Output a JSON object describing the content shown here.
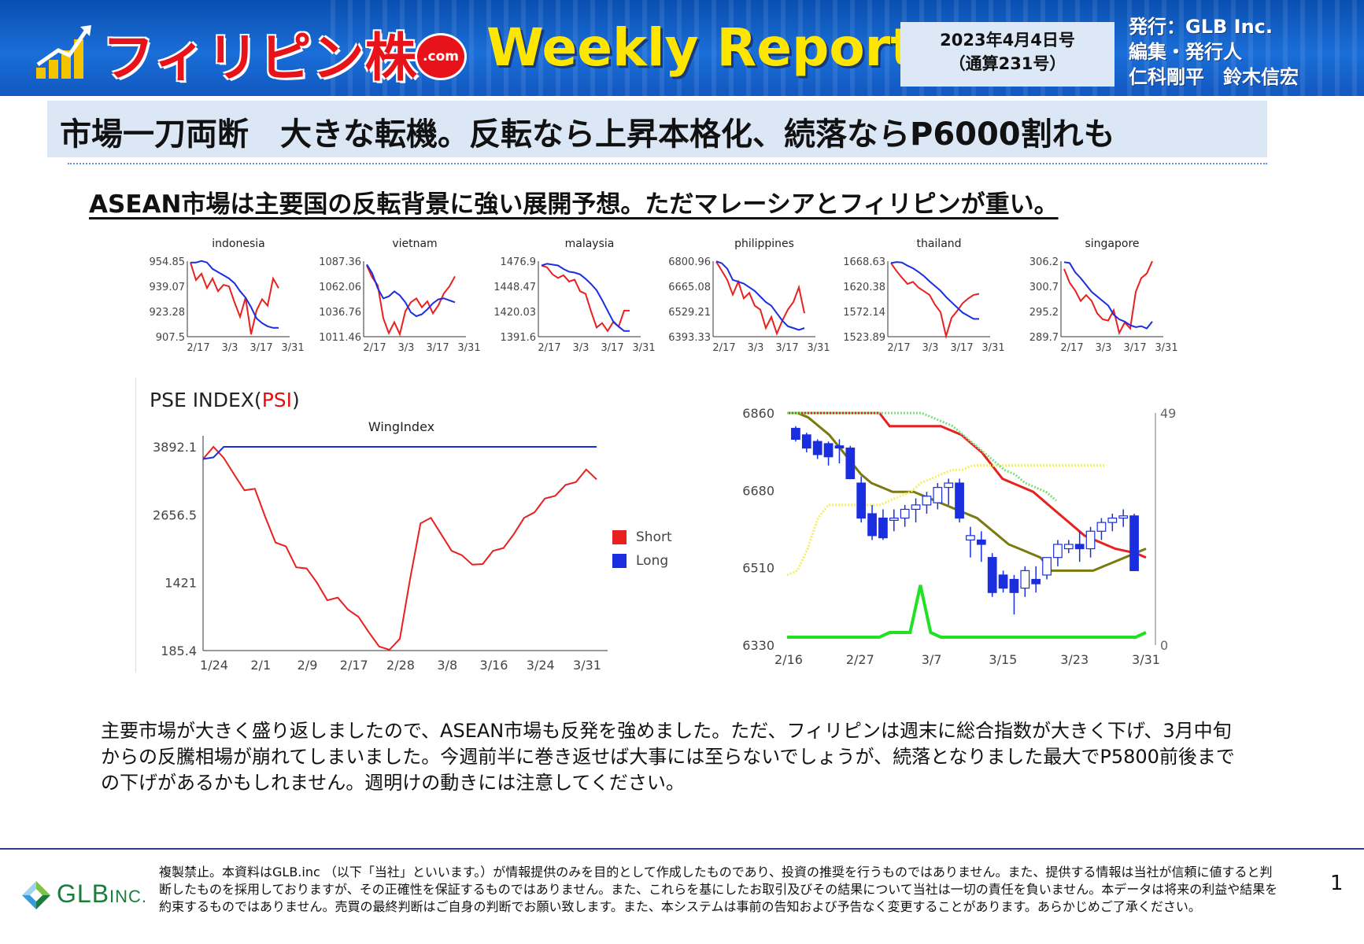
{
  "header": {
    "brand": "フィリピン株",
    "brand_suffix": ".com",
    "report_title": "Weekly Report",
    "issue_date": "2023年4月4日号",
    "issue_number": "（通算231号）",
    "publisher_line1": "発行：GLB Inc.",
    "publisher_line2": "編集・発行人",
    "publisher_line3": "仁科剛平　鈴木信宏"
  },
  "main_title": "市場一刀両断　大きな転機。反転なら上昇本格化、続落ならP6000割れも",
  "subtitle": "ASEAN市場は主要国の反転背景に強い展開予想。ただマレーシアとフィリピンが重い。",
  "body_text": "主要市場が大きく盛り返しましたので、ASEAN市場も反発を強めました。ただ、フィリピンは週末に総合指数が大きく下げ、3月中旬からの反騰相場が崩れてしまいました。今週前半に巻き返せば大事には至らないでしょうが、続落となりました最大でP5800前後までの下げがあるかもしれません。週明けの動きには注意してください。",
  "footer": {
    "company_logo_text": "GLB",
    "company_logo_suffix": "INC.",
    "disclaimer": "複製禁止。本資料はGLB.inc （以下「当社」といいます。）が情報提供のみを目的として作成したものであり、投資の推奨を行うものではありません。また、提供する情報は当社が信頼に値すると判断したものを採用しておりますが、その正確性を保証するものではありません。また、これらを基にしたお取引及びその結果について当社は一切の責任を負いません。本データは将来の利益や結果を約束するものではありません。売買の最終判断はご自身の判断でお願い致します。また、本システムは事前の告知および予告なく変更することがあります。あらかじめご了承ください。",
    "page_number": "1"
  },
  "colors": {
    "header_blue": "#1a6ed8",
    "brand_red": "#e8121a",
    "weekly_yellow": "#ffe600",
    "short": "#e82020",
    "long": "#1a2ee0"
  },
  "chart_data": [
    {
      "type": "line",
      "title": "indonesia",
      "yticks": [
        "954.85",
        "939.07",
        "923.28",
        "907.5"
      ],
      "ylim": [
        907.5,
        954.85
      ],
      "xticks": [
        "2/17",
        "3/3",
        "3/17",
        "3/31"
      ],
      "series": [
        {
          "color": "red",
          "values": [
            954,
            943,
            947,
            938,
            944,
            936,
            940,
            939,
            929,
            920,
            932,
            909,
            924,
            931,
            927,
            944,
            938
          ]
        },
        {
          "color": "blue",
          "values": [
            954,
            954,
            955,
            954,
            950,
            948,
            946,
            944,
            941,
            936,
            932,
            926,
            919,
            916,
            914,
            913,
            913
          ]
        }
      ]
    },
    {
      "type": "line",
      "title": "vietnam",
      "yticks": [
        "1087.36",
        "1062.06",
        "1036.76",
        "1011.46"
      ],
      "ylim": [
        1011.46,
        1087.36
      ],
      "xticks": [
        "2/17",
        "3/3",
        "3/17",
        "3/31"
      ],
      "series": [
        {
          "color": "red",
          "values": [
            1083,
            1071,
            1063,
            1030,
            1015,
            1026,
            1014,
            1037,
            1046,
            1050,
            1041,
            1047,
            1035,
            1043,
            1055,
            1062,
            1072
          ]
        },
        {
          "color": "blue",
          "values": [
            1084,
            1075,
            1060,
            1050,
            1052,
            1057,
            1053,
            1046,
            1036,
            1032,
            1034,
            1039,
            1045,
            1049,
            1050,
            1048,
            1046
          ]
        }
      ]
    },
    {
      "type": "line",
      "title": "malaysia",
      "yticks": [
        "1476.9",
        "1448.47",
        "1420.03",
        "1391.6"
      ],
      "ylim": [
        1391.6,
        1476.9
      ],
      "xticks": [
        "2/17",
        "3/3",
        "3/17",
        "3/31"
      ],
      "series": [
        {
          "color": "red",
          "values": [
            1472,
            1470,
            1462,
            1458,
            1461,
            1454,
            1456,
            1443,
            1440,
            1420,
            1402,
            1407,
            1398,
            1408,
            1403,
            1421,
            1421
          ]
        },
        {
          "color": "blue",
          "values": [
            1472,
            1474,
            1473,
            1472,
            1468,
            1465,
            1464,
            1462,
            1457,
            1451,
            1444,
            1433,
            1421,
            1409,
            1403,
            1398,
            1398
          ]
        }
      ]
    },
    {
      "type": "line",
      "title": "philippines",
      "yticks": [
        "6800.96",
        "6665.08",
        "6529.21",
        "6393.33"
      ],
      "ylim": [
        6393.33,
        6800.96
      ],
      "xticks": [
        "2/17",
        "3/3",
        "3/17",
        "3/31"
      ],
      "series": [
        {
          "color": "red",
          "values": [
            6798,
            6750,
            6700,
            6620,
            6690,
            6600,
            6630,
            6560,
            6540,
            6440,
            6500,
            6410,
            6480,
            6540,
            6580,
            6660,
            6520
          ]
        },
        {
          "color": "blue",
          "values": [
            6800,
            6790,
            6760,
            6700,
            6690,
            6680,
            6660,
            6640,
            6610,
            6580,
            6560,
            6520,
            6480,
            6450,
            6440,
            6430,
            6440
          ]
        }
      ]
    },
    {
      "type": "line",
      "title": "thailand",
      "yticks": [
        "1668.63",
        "1620.38",
        "1572.14",
        "1523.89"
      ],
      "ylim": [
        1523.89,
        1668.63
      ],
      "xticks": [
        "2/17",
        "3/3",
        "3/17",
        "3/31"
      ],
      "series": [
        {
          "color": "red",
          "values": [
            1665,
            1650,
            1637,
            1625,
            1629,
            1618,
            1611,
            1604,
            1585,
            1571,
            1525,
            1560,
            1573,
            1588,
            1597,
            1604,
            1606
          ]
        },
        {
          "color": "blue",
          "values": [
            1665,
            1667,
            1666,
            1660,
            1655,
            1648,
            1640,
            1630,
            1621,
            1612,
            1600,
            1590,
            1580,
            1570,
            1564,
            1558,
            1558
          ]
        }
      ]
    },
    {
      "type": "line",
      "title": "singapore",
      "yticks": [
        "306.2",
        "300.7",
        "295.2",
        "289.7"
      ],
      "ylim": [
        289.7,
        306.2
      ],
      "xticks": [
        "2/17",
        "3/3",
        "3/17",
        "3/31"
      ],
      "series": [
        {
          "color": "red",
          "values": [
            304.5,
            301.5,
            299.8,
            297.5,
            298.8,
            297.5,
            294.8,
            293.5,
            293.2,
            295.5,
            290.5,
            292.8,
            291.5,
            299.5,
            302.5,
            303.5,
            306.2
          ]
        },
        {
          "color": "blue",
          "values": [
            306.0,
            305.8,
            303.8,
            302.5,
            301.0,
            299.5,
            298.5,
            297.5,
            296.5,
            294.5,
            293.5,
            293.0,
            292.2,
            291.8,
            292.0,
            291.5,
            293.0
          ]
        }
      ]
    },
    {
      "type": "line",
      "title": "WingIndex",
      "heading": "PSE INDEX(",
      "heading_accent": "PSI",
      "heading_close": ")",
      "yticks": [
        "3892.1",
        "2656.5",
        "1421",
        "185.4"
      ],
      "ylim": [
        185.4,
        3892.1
      ],
      "xticks": [
        "1/24",
        "2/1",
        "2/9",
        "2/17",
        "2/28",
        "3/8",
        "3/16",
        "3/24",
        "3/31"
      ],
      "legend": [
        "Short",
        "Long"
      ],
      "series": [
        {
          "name": "Short",
          "color": "red",
          "values": [
            3670,
            3892,
            3690,
            3390,
            3100,
            3130,
            2620,
            2150,
            2080,
            1700,
            1680,
            1420,
            1100,
            1150,
            930,
            800,
            520,
            260,
            200,
            400,
            1500,
            2500,
            2600,
            2300,
            2000,
            1920,
            1750,
            1760,
            2000,
            2050,
            2300,
            2600,
            2700,
            2950,
            3000,
            3200,
            3250,
            3480,
            3300
          ]
        },
        {
          "name": "Long",
          "color": "blue",
          "values": [
            3670,
            3700,
            3892,
            3892,
            3892,
            3892,
            3892,
            3892,
            3892,
            3892,
            3892,
            3892,
            3892,
            3892,
            3892,
            3892,
            3892,
            3892,
            3892,
            3892,
            3892,
            3892,
            3892,
            3892,
            3892,
            3892,
            3892,
            3892,
            3892,
            3892,
            3892,
            3892,
            3892,
            3892,
            3892,
            3892,
            3892,
            3892,
            3892
          ]
        }
      ]
    },
    {
      "type": "candlestick",
      "yticks": [
        "6860",
        "6680",
        "6510",
        "6330"
      ],
      "ylim": [
        6330,
        6860
      ],
      "y2ticks": [
        "49",
        "0"
      ],
      "y2lim": [
        0,
        49
      ],
      "xticks": [
        "2/16",
        "2/27",
        "3/7",
        "3/15",
        "3/23",
        "3/31"
      ],
      "candles": [
        {
          "o": 6825,
          "h": 6830,
          "l": 6795,
          "c": 6800
        },
        {
          "o": 6810,
          "h": 6815,
          "l": 6770,
          "c": 6780
        },
        {
          "o": 6795,
          "h": 6800,
          "l": 6755,
          "c": 6765
        },
        {
          "o": 6790,
          "h": 6795,
          "l": 6740,
          "c": 6760
        },
        {
          "o": 6785,
          "h": 6800,
          "l": 6745,
          "c": 6780
        },
        {
          "o": 6780,
          "h": 6785,
          "l": 6710,
          "c": 6710
        },
        {
          "o": 6700,
          "h": 6715,
          "l": 6610,
          "c": 6620
        },
        {
          "o": 6630,
          "h": 6650,
          "l": 6570,
          "c": 6580
        },
        {
          "o": 6620,
          "h": 6640,
          "l": 6570,
          "c": 6575
        },
        {
          "o": 6615,
          "h": 6640,
          "l": 6590,
          "c": 6620
        },
        {
          "o": 6620,
          "h": 6650,
          "l": 6600,
          "c": 6640
        },
        {
          "o": 6640,
          "h": 6665,
          "l": 6610,
          "c": 6650
        },
        {
          "o": 6650,
          "h": 6680,
          "l": 6630,
          "c": 6670
        },
        {
          "o": 6655,
          "h": 6700,
          "l": 6640,
          "c": 6690
        },
        {
          "o": 6690,
          "h": 6710,
          "l": 6650,
          "c": 6700
        },
        {
          "o": 6700,
          "h": 6710,
          "l": 6610,
          "c": 6620
        },
        {
          "o": 6570,
          "h": 6600,
          "l": 6530,
          "c": 6580
        },
        {
          "o": 6570,
          "h": 6590,
          "l": 6520,
          "c": 6560
        },
        {
          "o": 6530,
          "h": 6540,
          "l": 6440,
          "c": 6450
        },
        {
          "o": 6490,
          "h": 6500,
          "l": 6450,
          "c": 6460
        },
        {
          "o": 6480,
          "h": 6490,
          "l": 6400,
          "c": 6450
        },
        {
          "o": 6460,
          "h": 6510,
          "l": 6440,
          "c": 6500
        },
        {
          "o": 6480,
          "h": 6510,
          "l": 6450,
          "c": 6470
        },
        {
          "o": 6490,
          "h": 6530,
          "l": 6480,
          "c": 6530
        },
        {
          "o": 6530,
          "h": 6570,
          "l": 6510,
          "c": 6560
        },
        {
          "o": 6550,
          "h": 6570,
          "l": 6540,
          "c": 6560
        },
        {
          "o": 6560,
          "h": 6590,
          "l": 6520,
          "c": 6550
        },
        {
          "o": 6550,
          "h": 6600,
          "l": 6530,
          "c": 6590
        },
        {
          "o": 6590,
          "h": 6620,
          "l": 6570,
          "c": 6610
        },
        {
          "o": 6610,
          "h": 6630,
          "l": 6590,
          "c": 6620
        },
        {
          "o": 6620,
          "h": 6640,
          "l": 6600,
          "c": 6625
        },
        {
          "o": 6625,
          "h": 6630,
          "l": 6500,
          "c": 6500
        }
      ],
      "lines": [
        {
          "color": "red",
          "values": [
            6860,
            6860,
            6860,
            6860,
            6860,
            6860,
            6860,
            6860,
            6860,
            6860,
            6830,
            6830,
            6830,
            6830,
            6830,
            6830,
            6820,
            6810,
            6790,
            6770,
            6740,
            6710,
            6700,
            6690,
            6680,
            6660,
            6640,
            6620,
            6600,
            6580,
            6570,
            6560,
            6550,
            6545,
            6540,
            6530
          ]
        },
        {
          "color": "olive",
          "values": [
            6860,
            6860,
            6850,
            6830,
            6810,
            6780,
            6750,
            6720,
            6700,
            6690,
            6680,
            6680,
            6680,
            6670,
            6660,
            6650,
            6640,
            6630,
            6620,
            6600,
            6580,
            6560,
            6550,
            6540,
            6530,
            6500,
            6500,
            6500,
            6500,
            6500,
            6510,
            6520,
            6530,
            6540,
            6550
          ]
        },
        {
          "color": "yellow",
          "values": [
            6490,
            6500,
            6550,
            6620,
            6650,
            6650,
            6650,
            6650,
            6650,
            6650,
            6660,
            6670,
            6680,
            6700,
            6710,
            6720,
            6730,
            6730,
            6740,
            6740,
            6740,
            6740,
            6740,
            6740,
            6740,
            6740,
            6740,
            6740,
            6740,
            6740,
            6740,
            6740
          ]
        },
        {
          "color": "lightgreen",
          "values": [
            6860,
            6860,
            6860,
            6860,
            6860,
            6860,
            6860,
            6860,
            6860,
            6860,
            6860,
            6860,
            6860,
            6860,
            6850,
            6840,
            6830,
            6810,
            6790,
            6770,
            6750,
            6730,
            6720,
            6700,
            6690,
            6680,
            6660
          ]
        },
        {
          "color": "green",
          "axis": "y2",
          "values": [
            1,
            1,
            1,
            1,
            1,
            1,
            1,
            1,
            1,
            1,
            2,
            2,
            2,
            12,
            2,
            1,
            1,
            1,
            1,
            1,
            1,
            1,
            1,
            1,
            1,
            1,
            1,
            1,
            1,
            1,
            1,
            1,
            1,
            1,
            1,
            2
          ]
        }
      ]
    }
  ]
}
